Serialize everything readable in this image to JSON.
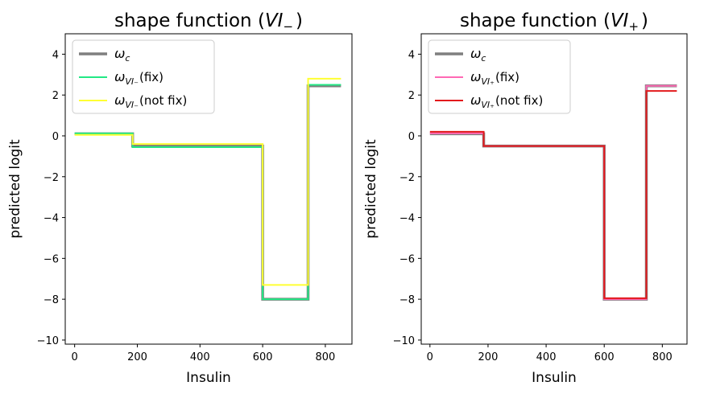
{
  "chart_data": [
    {
      "type": "line",
      "step": true,
      "title": "shape function (VI₋)",
      "title_main": "shape function (",
      "title_var": "VI",
      "title_sub": "−",
      "title_end": ")",
      "xlabel": "Insulin",
      "ylabel": "predicted logit",
      "xlim": [
        -30,
        885
      ],
      "ylim": [
        -10.2,
        5
      ],
      "xticks": [
        0,
        200,
        400,
        600,
        800
      ],
      "yticks": [
        -10,
        -8,
        -6,
        -4,
        -2,
        0,
        2,
        4
      ],
      "ytick_labels": [
        "−10",
        "−8",
        "−6",
        "−4",
        "−2",
        "0",
        "2",
        "4"
      ],
      "legend_position": "upper left",
      "series": [
        {
          "name": "ω_c",
          "label_main": "ω",
          "label_sub": "c",
          "label_suffix": "",
          "color": "#7f7f7f",
          "width": 3.5,
          "x": [
            0,
            185,
            185,
            600,
            600,
            745,
            745,
            850
          ],
          "y": [
            0.1,
            0.1,
            -0.5,
            -0.5,
            -8.0,
            -8.0,
            2.45,
            2.45
          ]
        },
        {
          "name": "ω_VI₋(fix)",
          "label_main": "ω",
          "label_sub": "VI₋",
          "label_suffix": "(fix)",
          "color": "#22e884",
          "width": 2,
          "x": [
            0,
            185,
            185,
            600,
            600,
            745,
            745,
            850
          ],
          "y": [
            0.12,
            0.12,
            -0.55,
            -0.55,
            -8.0,
            -8.0,
            2.5,
            2.5
          ]
        },
        {
          "name": "ω_VI₋(not fix)",
          "label_main": "ω",
          "label_sub": "VI₋",
          "label_suffix": "(not fix)",
          "color": "#ffff33",
          "width": 2,
          "x": [
            0,
            185,
            185,
            600,
            600,
            745,
            745,
            850
          ],
          "y": [
            0.05,
            0.05,
            -0.4,
            -0.4,
            -7.3,
            -7.3,
            2.8,
            2.8
          ]
        }
      ]
    },
    {
      "type": "line",
      "step": true,
      "title": "shape function (VI₊)",
      "title_main": "shape function (",
      "title_var": "VI",
      "title_sub": "+",
      "title_end": ")",
      "xlabel": "Insulin",
      "ylabel": "predicted logit",
      "xlim": [
        -30,
        885
      ],
      "ylim": [
        -10.2,
        5
      ],
      "xticks": [
        0,
        200,
        400,
        600,
        800
      ],
      "yticks": [
        -10,
        -8,
        -6,
        -4,
        -2,
        0,
        2,
        4
      ],
      "ytick_labels": [
        "−10",
        "−8",
        "−6",
        "−4",
        "−2",
        "0",
        "2",
        "4"
      ],
      "legend_position": "upper left",
      "series": [
        {
          "name": "ω_c",
          "label_main": "ω",
          "label_sub": "c",
          "label_suffix": "",
          "color": "#7f7f7f",
          "width": 3.5,
          "x": [
            0,
            185,
            185,
            600,
            600,
            745,
            745,
            850
          ],
          "y": [
            0.1,
            0.1,
            -0.5,
            -0.5,
            -8.0,
            -8.0,
            2.45,
            2.45
          ]
        },
        {
          "name": "ω_VI₊(fix)",
          "label_main": "ω",
          "label_sub": "VI₊",
          "label_suffix": "(fix)",
          "color": "#ff69b4",
          "width": 2,
          "x": [
            0,
            185,
            185,
            600,
            600,
            745,
            745,
            850
          ],
          "y": [
            0.12,
            0.12,
            -0.5,
            -0.5,
            -8.0,
            -8.0,
            2.45,
            2.45
          ]
        },
        {
          "name": "ω_VI₊(not fix)",
          "label_main": "ω",
          "label_sub": "VI₊",
          "label_suffix": "(not fix)",
          "color": "#e31a1c",
          "width": 2,
          "x": [
            0,
            185,
            185,
            600,
            600,
            745,
            745,
            850
          ],
          "y": [
            0.2,
            0.2,
            -0.5,
            -0.5,
            -7.95,
            -7.95,
            2.2,
            2.2
          ]
        }
      ]
    }
  ]
}
